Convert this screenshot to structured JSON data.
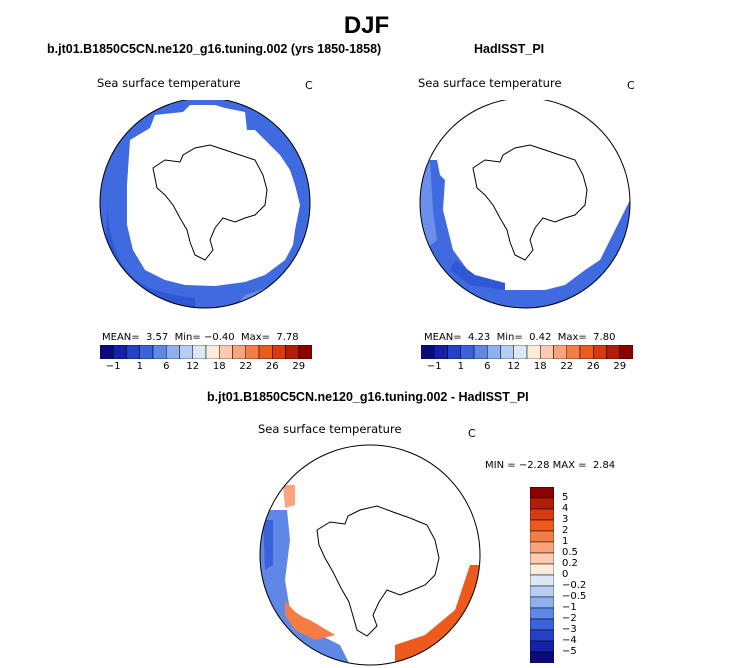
{
  "chart_data": [
    {
      "type": "polar-contour-map",
      "title": "b.jt01.B1850C5CN.ne120_g16.tuning.002 (yrs 1850-1858)",
      "subtitle": "Sea surface temperature",
      "units": "C",
      "stats": {
        "mean_label": "MEAN=",
        "mean": "3.57",
        "min_label": "Min=",
        "min": "−0.40",
        "max_label": "Max=",
        "max": "7.78"
      },
      "colorbar_labels": [
        "−1",
        "1",
        "6",
        "12",
        "18",
        "22",
        "26",
        "29"
      ]
    },
    {
      "type": "polar-contour-map",
      "title": "HadISST_PI",
      "subtitle": "Sea surface temperature",
      "units": "C",
      "stats": {
        "mean_label": "MEAN=",
        "mean": "4.23",
        "min_label": "Min=",
        "min": "0.42",
        "max_label": "Max=",
        "max": "7.80"
      },
      "colorbar_labels": [
        "−1",
        "1",
        "6",
        "12",
        "18",
        "22",
        "26",
        "29"
      ]
    },
    {
      "type": "polar-contour-map",
      "title": "b.jt01.B1850C5CN.ne120_g16.tuning.002 - HadISST_PI",
      "subtitle": "Sea surface temperature",
      "units": "C",
      "stats": {
        "min_label": "MIN =",
        "min": "−2.28",
        "max_label": "MAX =",
        "max": "2.84"
      },
      "colorbar_labels": [
        "5",
        "4",
        "3",
        "2",
        "1",
        "0.5",
        "0.2",
        "0",
        "−0.2",
        "−0.5",
        "−1",
        "−2",
        "−3",
        "−4",
        "−5"
      ]
    }
  ],
  "page": {
    "title": "DJF"
  },
  "colors": {
    "ocean_blue": "#3f6ae0",
    "ocean_light": "#6a90ec",
    "diverging": [
      "#8b0000",
      "#b01e0a",
      "#d63b12",
      "#ec5a1e",
      "#f47c45",
      "#f9a47d",
      "#fccbb0",
      "#fdebdc",
      "#dce8f6",
      "#b8cdf2",
      "#8fb0ee",
      "#5f87e6",
      "#3b62da",
      "#2541c8",
      "#1421a8",
      "#0a0a7a"
    ],
    "sequential": [
      "#0a0a7a",
      "#1421a8",
      "#2541c8",
      "#3b62da",
      "#5f87e6",
      "#8fb0ee",
      "#b8cdf2",
      "#dce8f6",
      "#fdebdc",
      "#fccbb0",
      "#f9a47d",
      "#f47c45",
      "#ec5a1e",
      "#d63b12",
      "#b01e0a",
      "#8b0000"
    ]
  }
}
